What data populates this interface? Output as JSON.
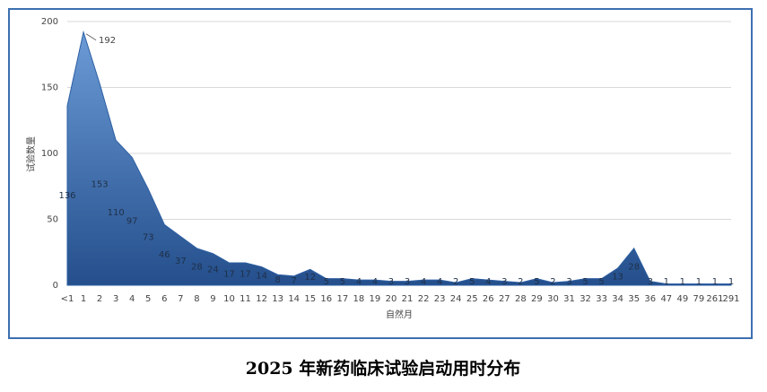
{
  "chart_data": {
    "type": "area",
    "title": "2025 年新药临床试验启动用时分布",
    "x_label": "自然月",
    "y_label": "试验数量",
    "categories": [
      "<1",
      "1",
      "2",
      "3",
      "4",
      "5",
      "6",
      "7",
      "8",
      "9",
      "10",
      "11",
      "12",
      "13",
      "14",
      "15",
      "16",
      "17",
      "18",
      "19",
      "20",
      "21",
      "22",
      "23",
      "24",
      "25",
      "26",
      "27",
      "28",
      "29",
      "30",
      "31",
      "32",
      "33",
      "34",
      "35",
      "36",
      "47",
      "49",
      "79",
      "261",
      "291"
    ],
    "values": [
      136,
      192,
      153,
      110,
      97,
      73,
      46,
      37,
      28,
      24,
      17,
      17,
      14,
      8,
      7,
      12,
      5,
      5,
      4,
      4,
      3,
      3,
      4,
      4,
      2,
      5,
      4,
      3,
      2,
      5,
      2,
      3,
      5,
      5,
      13,
      28,
      3,
      1,
      1,
      1,
      1,
      1
    ],
    "color": "#2e5fa3",
    "ylim": [
      0,
      200
    ],
    "yticks": [
      0,
      50,
      100,
      150,
      200
    ],
    "grid": true
  }
}
